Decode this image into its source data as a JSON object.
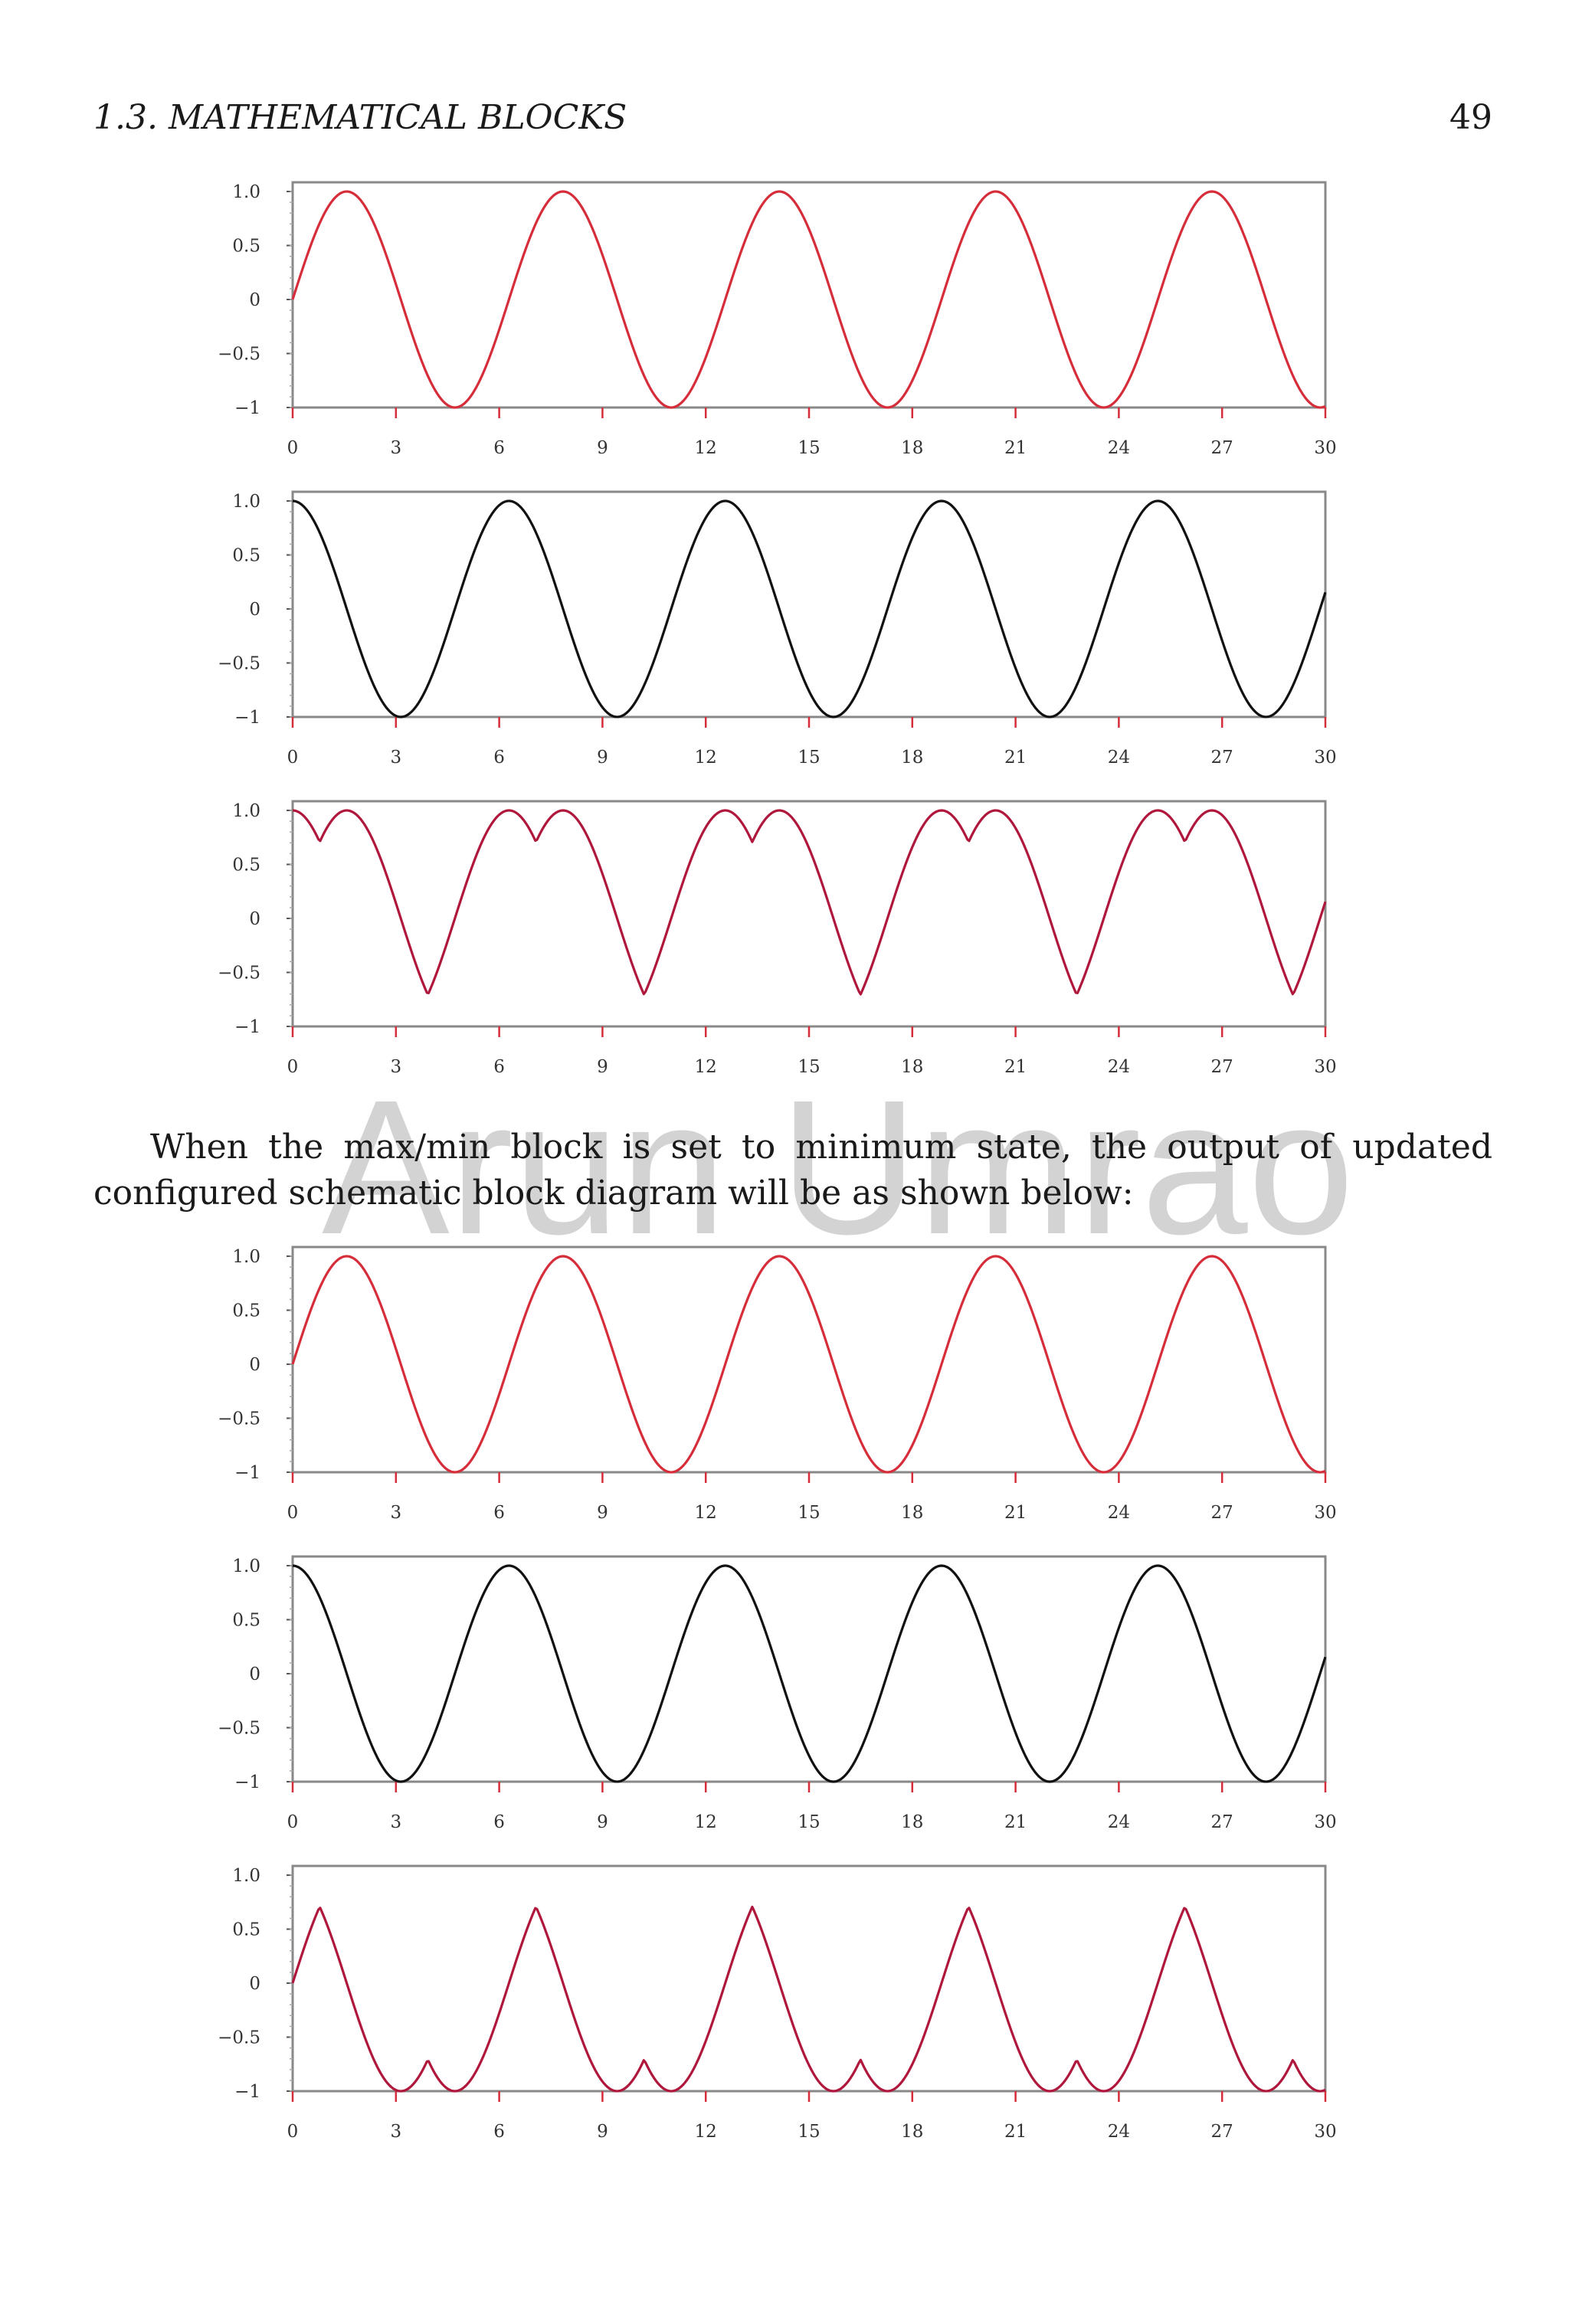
{
  "header": {
    "running_head": "1.3.  MATHEMATICAL BLOCKS",
    "page_number": "49"
  },
  "paragraph": "When the max/min block is set to minimum state, the output of updated configured schematic block diagram will be as shown below:",
  "watermark": "Arun Umrao",
  "chart_data": [
    {
      "type": "line",
      "title": "",
      "xlabel": "",
      "ylabel": "",
      "xlim": [
        0,
        30
      ],
      "ylim": [
        -1,
        1
      ],
      "xticks": [
        "0",
        "3",
        "6",
        "9",
        "12",
        "15",
        "18",
        "21",
        "24",
        "27",
        "30"
      ],
      "yticks": [
        "1.0",
        "0.5",
        "0",
        "−0.5",
        "−1"
      ],
      "series": [
        {
          "function": "sin(x)",
          "color": "#d62d3a"
        }
      ],
      "grid": false
    },
    {
      "type": "line",
      "title": "",
      "xlabel": "",
      "ylabel": "",
      "xlim": [
        0,
        30
      ],
      "ylim": [
        -1,
        1
      ],
      "xticks": [
        "0",
        "3",
        "6",
        "9",
        "12",
        "15",
        "18",
        "21",
        "24",
        "27",
        "30"
      ],
      "yticks": [
        "1.0",
        "0.5",
        "0",
        "−0.5",
        "−1"
      ],
      "series": [
        {
          "function": "cos(x)",
          "color": "#111111"
        }
      ],
      "grid": false
    },
    {
      "type": "line",
      "title": "",
      "xlabel": "",
      "ylabel": "",
      "xlim": [
        0,
        30
      ],
      "ylim": [
        -1,
        1
      ],
      "xticks": [
        "0",
        "3",
        "6",
        "9",
        "12",
        "15",
        "18",
        "21",
        "24",
        "27",
        "30"
      ],
      "yticks": [
        "1.0",
        "0.5",
        "0",
        "−0.5",
        "−1"
      ],
      "series": [
        {
          "function": "max(sin(x), cos(x))",
          "color": "#b0173c"
        }
      ],
      "grid": false
    },
    {
      "type": "line",
      "title": "",
      "xlabel": "",
      "ylabel": "",
      "xlim": [
        0,
        30
      ],
      "ylim": [
        -1,
        1
      ],
      "xticks": [
        "0",
        "3",
        "6",
        "9",
        "12",
        "15",
        "18",
        "21",
        "24",
        "27",
        "30"
      ],
      "yticks": [
        "1.0",
        "0.5",
        "0",
        "−0.5",
        "−1"
      ],
      "series": [
        {
          "function": "sin(x)",
          "color": "#d62d3a"
        }
      ],
      "grid": false
    },
    {
      "type": "line",
      "title": "",
      "xlabel": "",
      "ylabel": "",
      "xlim": [
        0,
        30
      ],
      "ylim": [
        -1,
        1
      ],
      "xticks": [
        "0",
        "3",
        "6",
        "9",
        "12",
        "15",
        "18",
        "21",
        "24",
        "27",
        "30"
      ],
      "yticks": [
        "1.0",
        "0.5",
        "0",
        "−0.5",
        "−1"
      ],
      "series": [
        {
          "function": "cos(x)",
          "color": "#111111"
        }
      ],
      "grid": false
    },
    {
      "type": "line",
      "title": "",
      "xlabel": "",
      "ylabel": "",
      "xlim": [
        0,
        30
      ],
      "ylim": [
        -1,
        1
      ],
      "xticks": [
        "0",
        "3",
        "6",
        "9",
        "12",
        "15",
        "18",
        "21",
        "24",
        "27",
        "30"
      ],
      "yticks": [
        "1.0",
        "0.5",
        "0",
        "−0.5",
        "−1"
      ],
      "series": [
        {
          "function": "min(sin(x), cos(x))",
          "color": "#b0173c"
        }
      ],
      "grid": false
    }
  ]
}
